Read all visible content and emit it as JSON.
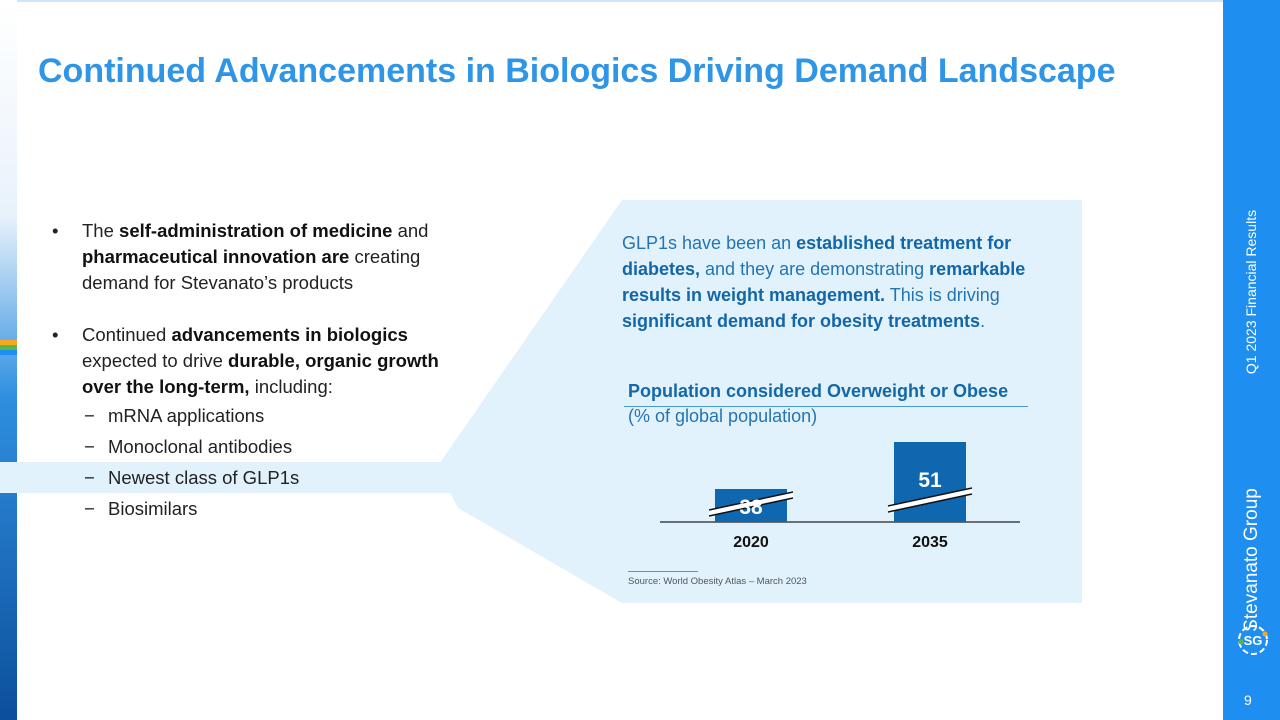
{
  "title": "Continued Advancements in Biologics Driving Demand Landscape",
  "bullets": [
    {
      "parts": [
        {
          "text": "The ",
          "bold": false
        },
        {
          "text": "self-administration of medicine",
          "bold": true
        },
        {
          "text": " and ",
          "bold": false
        },
        {
          "text": "pharmaceutical innovation are",
          "bold": true
        },
        {
          "text": " creating demand for Stevanato’s products",
          "bold": false
        }
      ]
    },
    {
      "parts": [
        {
          "text": "Continued ",
          "bold": false
        },
        {
          "text": "advancements in biologics",
          "bold": true
        },
        {
          "text": " expected to drive ",
          "bold": false
        },
        {
          "text": "durable, organic growth over the long-term,",
          "bold": true
        },
        {
          "text": " including:",
          "bold": false
        }
      ],
      "subitems": [
        "mRNA applications",
        "Monoclonal antibodies",
        "Newest class of GLP1s",
        "Biosimilars"
      ]
    }
  ],
  "subitem_dash": "−",
  "bullet_symbol": "•",
  "highlighted_subitem_index": 2,
  "panel": {
    "parts": [
      {
        "text": "GLP1s have been an ",
        "bold": false
      },
      {
        "text": "established treatment for diabetes,",
        "bold": true
      },
      {
        "text": " and they are demonstrating ",
        "bold": false
      },
      {
        "text": "remarkable results in weight management.",
        "bold": true
      },
      {
        "text": " This is driving ",
        "bold": false
      },
      {
        "text": "significant demand for obesity treatments",
        "bold": true
      },
      {
        "text": ".",
        "bold": false
      }
    ],
    "chart_title": "Population considered Overweight or Obese",
    "chart_subtitle": "(% of global population)",
    "source": "Source: World Obesity Atlas – March 2023"
  },
  "chart_data": {
    "type": "bar",
    "title": "Population considered Overweight or Obese",
    "subtitle": "(% of global population)",
    "categories": [
      "2020",
      "2035"
    ],
    "values": [
      38,
      51
    ],
    "axis_break": true,
    "bar_color": "#0f67b0"
  },
  "sidebar": {
    "report_label": "Q1 2023 Financial Results",
    "brand": "Stevanato Group",
    "logo_text": "SG",
    "page_number": "9"
  },
  "colors": {
    "title": "#2f95e6",
    "accent_bar": "#1f8ef1",
    "panel_bg": "#e1f2fd",
    "bar": "#0f67b0",
    "panel_text": "#2474b3"
  }
}
